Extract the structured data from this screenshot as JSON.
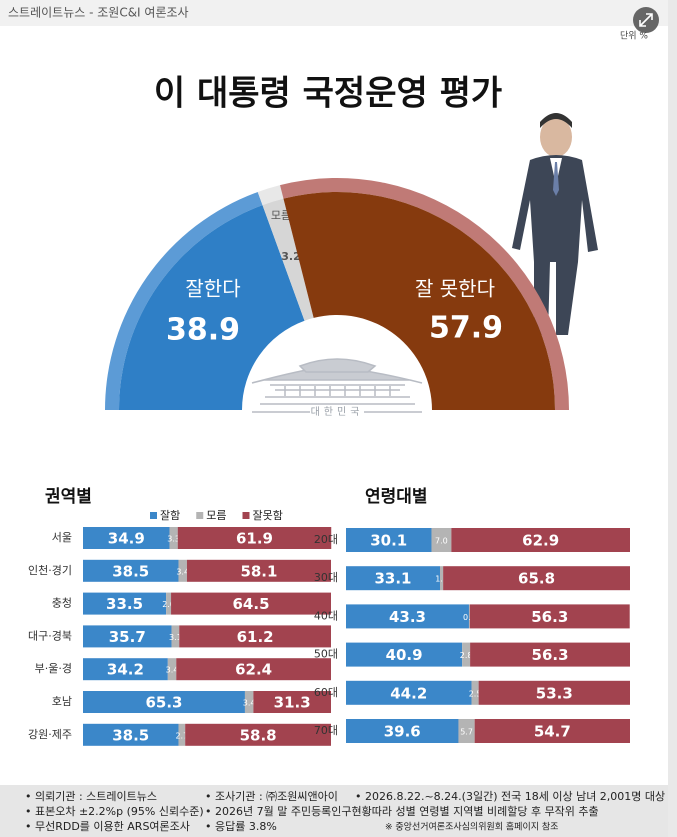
{
  "header": {
    "source": "스트레이트뉴스 - 조원C&I 여론조사",
    "unit": "단위 %"
  },
  "chart_data": [
    {
      "type": "half-donut",
      "title": "이 대통령 국정운영 평가",
      "categories": [
        "잘한다",
        "모름",
        "잘 못한다"
      ],
      "values": [
        38.9,
        3.2,
        57.9
      ],
      "colors": [
        "#2f7fc6",
        "#d6d6d6",
        "#863a0e"
      ],
      "rim_colors": [
        "#5c9bd6",
        "#e8e8e8",
        "#c07a76"
      ],
      "emblem_text": "대한민국"
    },
    {
      "type": "stacked-bar",
      "title": "권역별",
      "categories": [
        "서울",
        "인천·경기",
        "충청",
        "대구·경북",
        "부·울·경",
        "호남",
        "강원·제주"
      ],
      "series": [
        {
          "name": "잘함",
          "color": "#3b87c9",
          "values": [
            34.9,
            38.5,
            33.5,
            35.7,
            34.2,
            65.3,
            38.5
          ]
        },
        {
          "name": "모름",
          "color": "#b4b4b4",
          "values": [
            3.3,
            3.4,
            2.0,
            3.1,
            3.4,
            3.4,
            2.7
          ],
          "value_labels": [
            "3.3",
            "3.4",
            "2.0",
            "3.1",
            "3.4",
            "3.4",
            "2.7"
          ]
        },
        {
          "name": "잘못함",
          "color": "#a2434f",
          "values": [
            61.9,
            58.1,
            64.5,
            61.2,
            62.4,
            31.3,
            58.8
          ]
        }
      ]
    },
    {
      "type": "stacked-bar",
      "title": "연령대별",
      "categories": [
        "20대",
        "30대",
        "40대",
        "50대",
        "60대",
        "70대"
      ],
      "series": [
        {
          "color": "#3b87c9",
          "values": [
            30.1,
            33.1,
            43.3,
            40.9,
            44.2,
            39.6
          ]
        },
        {
          "color": "#b4b4b4",
          "values": [
            7.0,
            1.1,
            0.3,
            2.8,
            2.5,
            5.7
          ],
          "value_labels": [
            "7.0",
            "1.1",
            "0.3",
            "2.8",
            "2.5",
            "5.7"
          ]
        },
        {
          "color": "#a2434f",
          "values": [
            62.9,
            65.8,
            56.3,
            56.3,
            53.3,
            54.7
          ]
        }
      ]
    }
  ],
  "footer": {
    "items": [
      "• 의뢰기관 : 스트레이트뉴스",
      "• 조사기관 : ㈜조원씨앤아이",
      "• 2026.8.22.~8.24.(3일간) 전국 18세 이상 남녀 2,001명 대상",
      "• 표본오차 ±2.2%p (95% 신뢰수준)",
      "• 2026년 7월 말 주민등록인구현황따라 성별 연령별 지역별 비례할당 후 무작위 추출",
      "• 무선RDD를 이용한 ARS여론조사",
      "• 응답률 3.8%",
      "※ 중앙선거여론조사심의위원회 홈페이지 참조"
    ]
  }
}
